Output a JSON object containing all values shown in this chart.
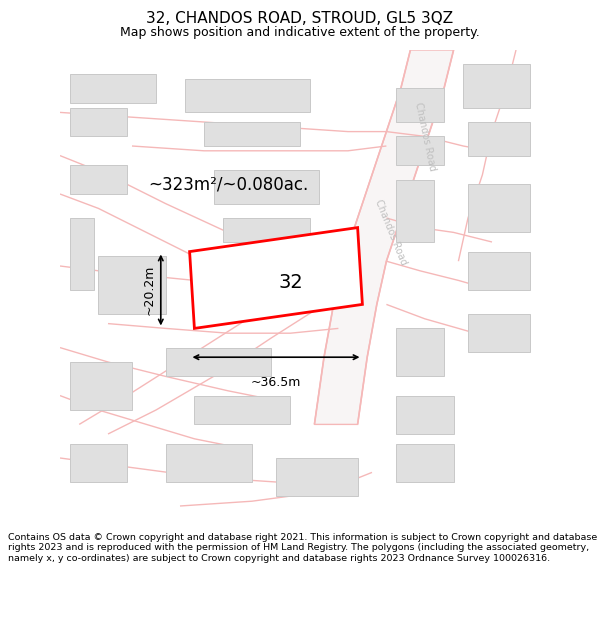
{
  "title": "32, CHANDOS ROAD, STROUD, GL5 3QZ",
  "subtitle": "Map shows position and indicative extent of the property.",
  "footer": "Contains OS data © Crown copyright and database right 2021. This information is subject to Crown copyright and database rights 2023 and is reproduced with the permission of HM Land Registry. The polygons (including the associated geometry, namely x, y co-ordinates) are subject to Crown copyright and database rights 2023 Ordnance Survey 100026316.",
  "map_bg": "#ffffff",
  "road_line_color": "#f5b8b8",
  "road_fill_color": "#ffffff",
  "building_face": "#e0e0e0",
  "building_edge": "#c8c8c8",
  "highlight_color": "#ff0000",
  "area_text": "~323m²/~0.080ac.",
  "width_text": "~36.5m",
  "height_text": "~20.2m",
  "number_text": "32",
  "chandos_road_label": "Chandos Road",
  "title_fontsize": 11,
  "subtitle_fontsize": 9,
  "footer_fontsize": 6.8,
  "chandos_label_color": "#c0c0c0"
}
